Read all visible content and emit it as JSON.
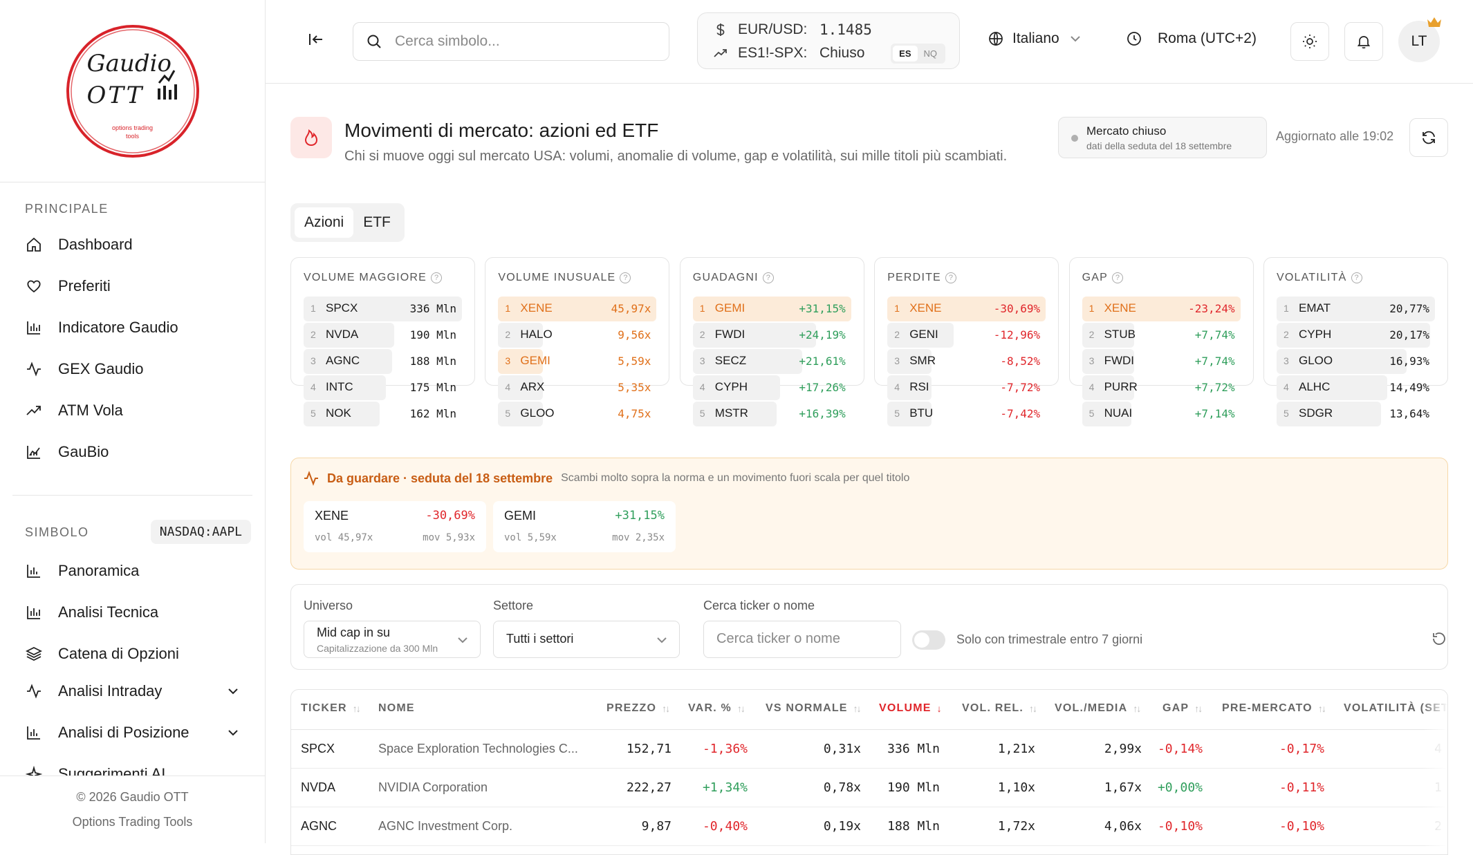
{
  "brand": {
    "logo_line1": "Gaudio",
    "logo_line2": "OTT",
    "logo_tagline1": "options trading",
    "logo_tagline2": "tools",
    "accent": "#d8232a"
  },
  "sidebar": {
    "section_main": "PRINCIPALE",
    "main_items": [
      {
        "label": "Dashboard",
        "icon": "home-icon"
      },
      {
        "label": "Preferiti",
        "icon": "heart-icon"
      },
      {
        "label": "Indicatore Gaudio",
        "icon": "bar-chart-icon"
      },
      {
        "label": "GEX Gaudio",
        "icon": "activity-icon"
      },
      {
        "label": "ATM Vola",
        "icon": "trend-icon"
      },
      {
        "label": "GauBio",
        "icon": "area-chart-icon"
      }
    ],
    "section_symbol": "SIMBOLO",
    "symbol": "NASDAQ:AAPL",
    "symbol_items": [
      {
        "label": "Panoramica",
        "icon": "bar-chart-icon"
      },
      {
        "label": "Analisi Tecnica",
        "icon": "bar-chart-icon"
      },
      {
        "label": "Catena di Opzioni",
        "icon": "layers-icon"
      },
      {
        "label": "Analisi Intraday",
        "icon": "activity-icon"
      },
      {
        "label": "Analisi di Posizione",
        "icon": "bar-chart-icon"
      },
      {
        "label": "Suggerimenti AI",
        "icon": "sparkle-icon"
      }
    ],
    "footer_line1": "© 2026 Gaudio OTT",
    "footer_line2": "Options Trading Tools"
  },
  "topbar": {
    "search_placeholder": "Cerca simbolo...",
    "fx_label": "EUR/USD:",
    "fx_value": "1.1485",
    "spx_label": "ES1!-SPX:",
    "spx_value": "Chiuso",
    "toggle_es": "ES",
    "toggle_nq": "NQ",
    "language": "Italiano",
    "timezone": "Roma (UTC+2)",
    "avatar": "LT"
  },
  "page": {
    "title": "Movimenti di mercato: azioni ed ETF",
    "subtitle": "Chi si muove oggi sul mercato USA: volumi, anomalie di volume, gap e volatilità, sui mille titoli più scambiati.",
    "status_title": "Mercato chiuso",
    "status_sub": "dati della seduta del 18 settembre",
    "updated": "Aggiornato alle 19:02",
    "tabs": [
      "Azioni",
      "ETF"
    ]
  },
  "cards": [
    {
      "title": "VOLUME MAGGIORE",
      "rows": [
        {
          "rank": "1",
          "ticker": "SPCX",
          "value": "336 Mln",
          "fill": 1.0,
          "tone": "dark",
          "hl": false
        },
        {
          "rank": "2",
          "ticker": "NVDA",
          "value": "190 Mln",
          "fill": 0.57,
          "tone": "dark",
          "hl": false
        },
        {
          "rank": "3",
          "ticker": "AGNC",
          "value": "188 Mln",
          "fill": 0.56,
          "tone": "dark",
          "hl": false
        },
        {
          "rank": "4",
          "ticker": "INTC",
          "value": "175 Mln",
          "fill": 0.52,
          "tone": "dark",
          "hl": false
        },
        {
          "rank": "5",
          "ticker": "NOK",
          "value": "162 Mln",
          "fill": 0.48,
          "tone": "dark",
          "hl": false
        }
      ]
    },
    {
      "title": "VOLUME INUSUALE",
      "rows": [
        {
          "rank": "1",
          "ticker": "XENE",
          "value": "45,97x",
          "fill": 1.0,
          "tone": "org",
          "hl": true
        },
        {
          "rank": "2",
          "ticker": "HALO",
          "value": "9,56x",
          "fill": 0.21,
          "tone": "org",
          "hl": false
        },
        {
          "rank": "3",
          "ticker": "GEMI",
          "value": "5,59x",
          "fill": 0.12,
          "tone": "org",
          "hl": true
        },
        {
          "rank": "4",
          "ticker": "ARX",
          "value": "5,35x",
          "fill": 0.12,
          "tone": "org",
          "hl": false
        },
        {
          "rank": "5",
          "ticker": "GLOO",
          "value": "4,75x",
          "fill": 0.1,
          "tone": "org",
          "hl": false
        }
      ]
    },
    {
      "title": "GUADAGNI",
      "rows": [
        {
          "rank": "1",
          "ticker": "GEMI",
          "value": "+31,15%",
          "fill": 1.0,
          "tone": "pos",
          "hl": true
        },
        {
          "rank": "2",
          "ticker": "FWDI",
          "value": "+24,19%",
          "fill": 0.78,
          "tone": "pos",
          "hl": false
        },
        {
          "rank": "3",
          "ticker": "SECZ",
          "value": "+21,61%",
          "fill": 0.69,
          "tone": "pos",
          "hl": false
        },
        {
          "rank": "4",
          "ticker": "CYPH",
          "value": "+17,26%",
          "fill": 0.55,
          "tone": "pos",
          "hl": false
        },
        {
          "rank": "5",
          "ticker": "MSTR",
          "value": "+16,39%",
          "fill": 0.53,
          "tone": "pos",
          "hl": false
        }
      ]
    },
    {
      "title": "PERDITE",
      "rows": [
        {
          "rank": "1",
          "ticker": "XENE",
          "value": "-30,69%",
          "fill": 1.0,
          "tone": "neg",
          "hl": true
        },
        {
          "rank": "2",
          "ticker": "GENI",
          "value": "-12,96%",
          "fill": 0.42,
          "tone": "neg",
          "hl": false
        },
        {
          "rank": "3",
          "ticker": "SMR",
          "value": "-8,52%",
          "fill": 0.28,
          "tone": "neg",
          "hl": false
        },
        {
          "rank": "4",
          "ticker": "RSI",
          "value": "-7,72%",
          "fill": 0.25,
          "tone": "neg",
          "hl": false
        },
        {
          "rank": "5",
          "ticker": "BTU",
          "value": "-7,42%",
          "fill": 0.24,
          "tone": "neg",
          "hl": false
        }
      ]
    },
    {
      "title": "GAP",
      "rows": [
        {
          "rank": "1",
          "ticker": "XENE",
          "value": "-23,24%",
          "fill": 1.0,
          "tone": "neg",
          "hl": true
        },
        {
          "rank": "2",
          "ticker": "STUB",
          "value": "+7,74%",
          "fill": 0.33,
          "tone": "pos",
          "hl": false
        },
        {
          "rank": "3",
          "ticker": "FWDI",
          "value": "+7,74%",
          "fill": 0.33,
          "tone": "pos",
          "hl": false
        },
        {
          "rank": "4",
          "ticker": "PURR",
          "value": "+7,72%",
          "fill": 0.33,
          "tone": "pos",
          "hl": false
        },
        {
          "rank": "5",
          "ticker": "NUAI",
          "value": "+7,14%",
          "fill": 0.31,
          "tone": "pos",
          "hl": false
        }
      ]
    },
    {
      "title": "VOLATILITÀ",
      "rows": [
        {
          "rank": "1",
          "ticker": "EMAT",
          "value": "20,77%",
          "fill": 1.0,
          "tone": "dark",
          "hl": false
        },
        {
          "rank": "2",
          "ticker": "CYPH",
          "value": "20,17%",
          "fill": 0.97,
          "tone": "dark",
          "hl": false
        },
        {
          "rank": "3",
          "ticker": "GLOO",
          "value": "16,93%",
          "fill": 0.82,
          "tone": "dark",
          "hl": false
        },
        {
          "rank": "4",
          "ticker": "ALHC",
          "value": "14,49%",
          "fill": 0.7,
          "tone": "dark",
          "hl": false
        },
        {
          "rank": "5",
          "ticker": "SDGR",
          "value": "13,64%",
          "fill": 0.66,
          "tone": "dark",
          "hl": false
        }
      ]
    }
  ],
  "watch": {
    "title": "Da guardare · seduta del 18 settembre",
    "subtitle": "Scambi molto sopra la norma e un movimento fuori scala per quel titolo",
    "items": [
      {
        "ticker": "XENE",
        "change": "-30,69%",
        "tone": "neg",
        "vol": "vol 45,97x",
        "mov": "mov 5,93x"
      },
      {
        "ticker": "GEMI",
        "change": "+31,15%",
        "tone": "pos",
        "vol": "vol 5,59x",
        "mov": "mov 2,35x"
      }
    ]
  },
  "filters": {
    "universe_label": "Universo",
    "universe_value": "Mid cap in su",
    "universe_sub": "Capitalizzazione da 300 Mln",
    "sector_label": "Settore",
    "sector_value": "Tutti i settori",
    "search_label": "Cerca ticker o nome",
    "search_placeholder": "Cerca ticker o nome",
    "toggle_label": "Solo con trimestrale entro 7 giorni"
  },
  "table": {
    "headers": [
      "TICKER",
      "NOME",
      "PREZZO",
      "VAR. %",
      "VS NORMALE",
      "VOLUME",
      "VOL. REL.",
      "VOL./MEDIA",
      "GAP",
      "PRE-MERCATO",
      "VOLATILITÀ (SET"
    ],
    "rows": [
      {
        "ticker": "SPCX",
        "name": "Space Exploration Technologies C...",
        "price": "152,71",
        "chg": "-1,36%",
        "chg_tone": "neg",
        "vs": "0,31x",
        "vol": "336 Mln",
        "rel": "1,21x",
        "avg": "2,99x",
        "gap": "-0,14%",
        "gap_tone": "neg",
        "pre": "-0,17%",
        "pre_tone": "neg",
        "vola": "4"
      },
      {
        "ticker": "NVDA",
        "name": "NVIDIA Corporation",
        "price": "222,27",
        "chg": "+1,34%",
        "chg_tone": "pos",
        "vs": "0,78x",
        "vol": "190 Mln",
        "rel": "1,10x",
        "avg": "1,67x",
        "gap": "+0,00%",
        "gap_tone": "pos",
        "pre": "-0,11%",
        "pre_tone": "neg",
        "vola": "1"
      },
      {
        "ticker": "AGNC",
        "name": "AGNC Investment Corp.",
        "price": "9,87",
        "chg": "-0,40%",
        "chg_tone": "neg",
        "vs": "0,19x",
        "vol": "188 Mln",
        "rel": "1,72x",
        "avg": "4,06x",
        "gap": "-0,10%",
        "gap_tone": "neg",
        "pre": "-0,10%",
        "pre_tone": "neg",
        "vola": "2"
      }
    ]
  }
}
